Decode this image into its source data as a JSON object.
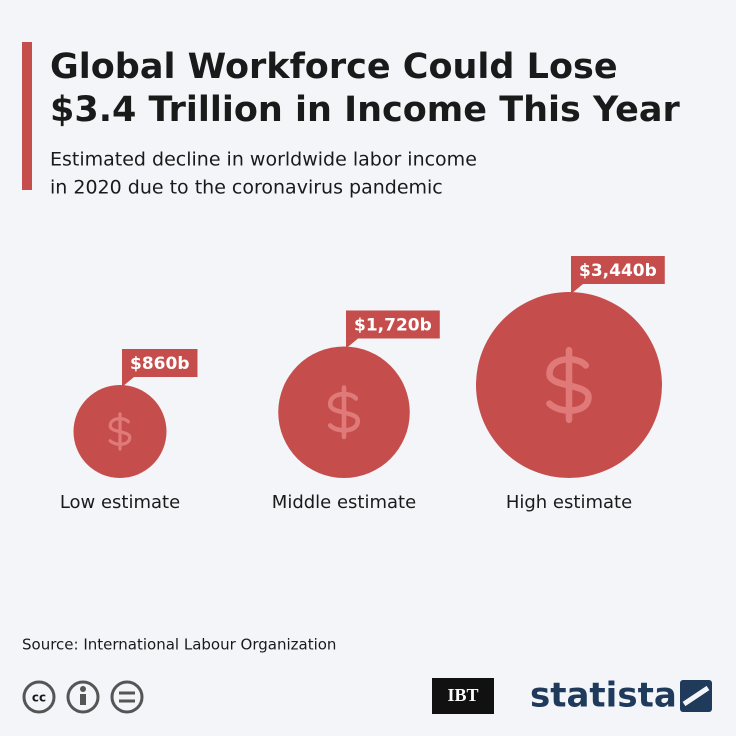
{
  "chart_data": {
    "type": "bubble",
    "title": [
      "Global Workforce Could Lose",
      "$3.4 Trillion in Income This Year"
    ],
    "subtitle": [
      "Estimated decline in worldwide labor income",
      "in 2020 due to the coronavirus pandemic"
    ],
    "categories": [
      "Low estimate",
      "Middle estimate",
      "High estimate"
    ],
    "values": [
      860,
      1720,
      3440
    ],
    "value_labels": [
      "$860b",
      "$1,720b",
      "$3,440b"
    ],
    "color": "#c54e4d",
    "source": "Source: International Labour Organization"
  },
  "footer": {
    "logos": [
      "IBT",
      "statista"
    ]
  }
}
